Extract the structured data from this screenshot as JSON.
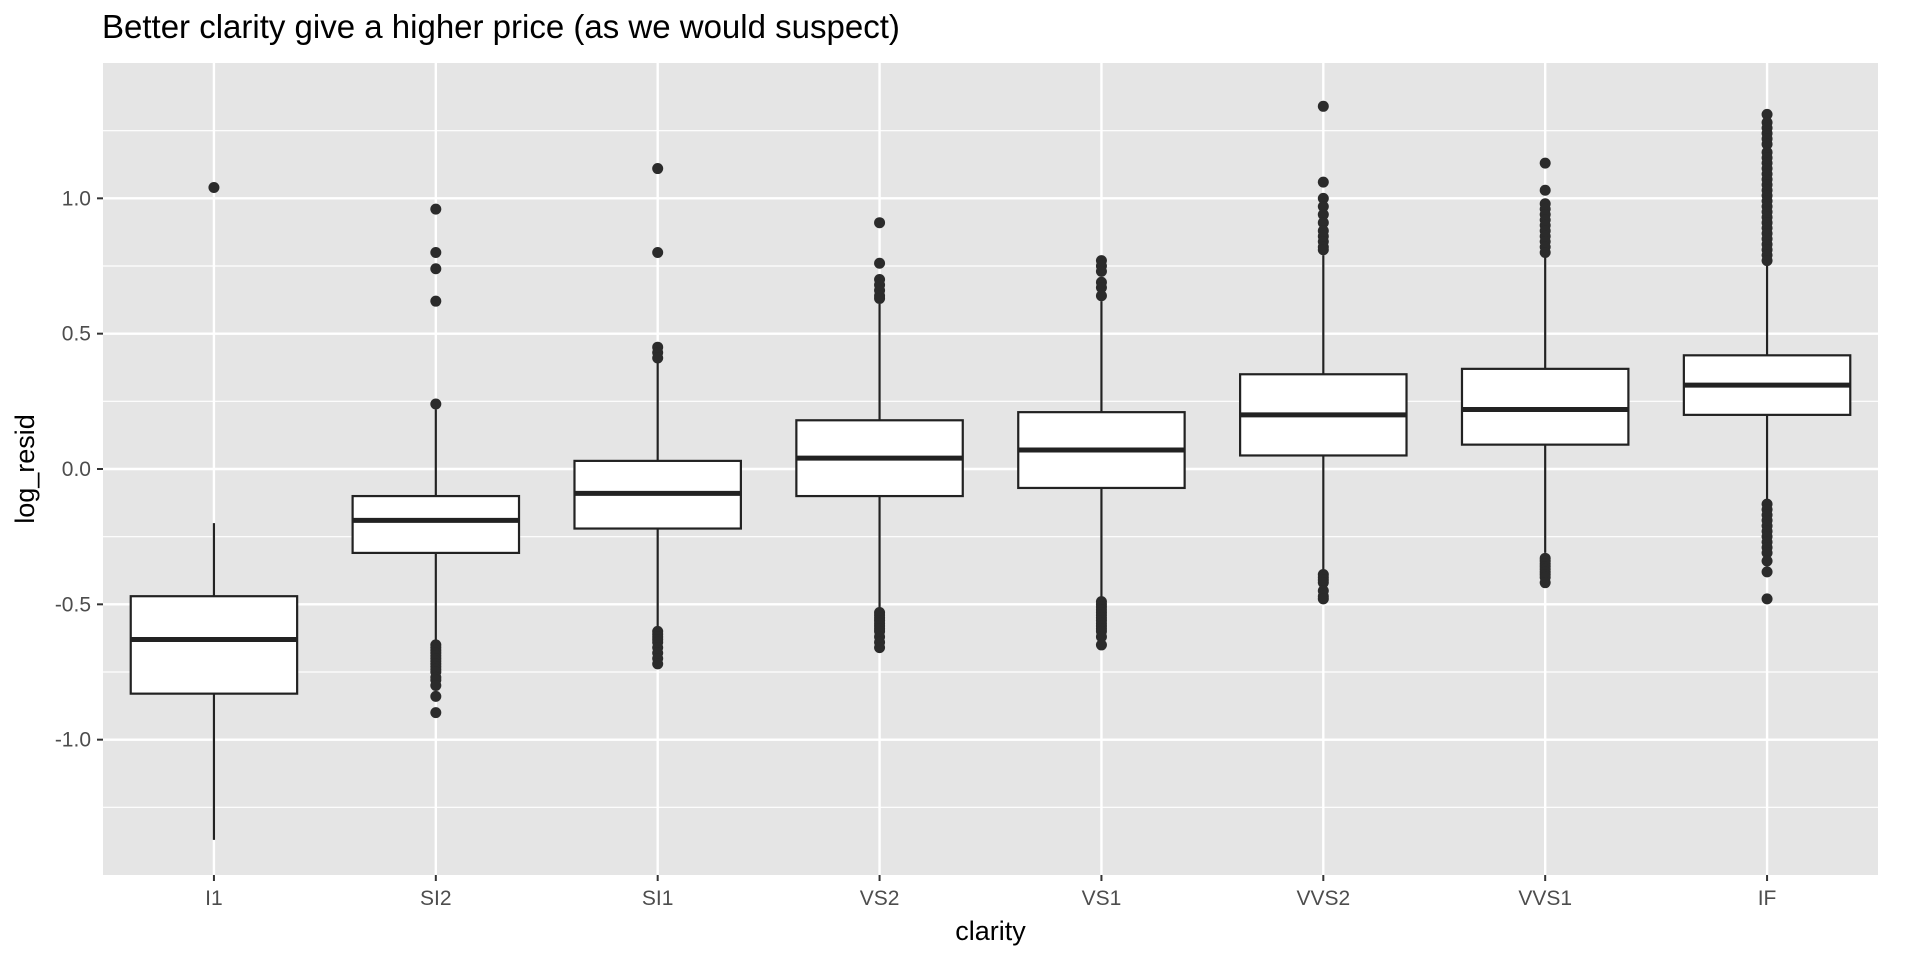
{
  "chart_data": {
    "type": "boxplot",
    "title": "Better clarity give a higher price (as we would suspect)",
    "xlabel": "clarity",
    "ylabel": "log_resid",
    "ylim": [
      -1.5,
      1.5
    ],
    "y_ticks": [
      -1.0,
      -0.5,
      0.0,
      0.5,
      1.0
    ],
    "y_tick_labels": [
      "-1.0",
      "-0.5",
      "0.0",
      "0.5",
      "1.0"
    ],
    "grid": true,
    "legend": "none",
    "colors": {
      "panel": "#e5e5e5",
      "grid": "#ffffff",
      "box_fill": "#ffffff",
      "line": "#222222",
      "outlier": "#2b2b2b",
      "tick_text": "#4d4d4d"
    },
    "categories": [
      "I1",
      "SI2",
      "SI1",
      "VS2",
      "VS1",
      "VVS2",
      "VVS1",
      "IF"
    ],
    "boxes": [
      {
        "category": "I1",
        "whisker_low": -1.37,
        "q1": -0.83,
        "median": -0.63,
        "q3": -0.47,
        "whisker_high": -0.2,
        "outliers": [
          1.04
        ]
      },
      {
        "category": "SI2",
        "whisker_low": -0.64,
        "q1": -0.31,
        "median": -0.19,
        "q3": -0.1,
        "whisker_high": 0.22,
        "outliers": [
          0.96,
          0.8,
          0.74,
          0.62,
          0.24,
          -0.65,
          -0.66,
          -0.67,
          -0.68,
          -0.69,
          -0.7,
          -0.71,
          -0.72,
          -0.73,
          -0.74,
          -0.75,
          -0.77,
          -0.78,
          -0.8,
          -0.84,
          -0.9
        ]
      },
      {
        "category": "SI1",
        "whisker_low": -0.59,
        "q1": -0.22,
        "median": -0.09,
        "q3": 0.03,
        "whisker_high": 0.4,
        "outliers": [
          1.11,
          0.8,
          0.45,
          0.43,
          0.41,
          -0.6,
          -0.61,
          -0.62,
          -0.63,
          -0.64,
          -0.66,
          -0.68,
          -0.7,
          -0.72
        ]
      },
      {
        "category": "VS2",
        "whisker_low": -0.52,
        "q1": -0.1,
        "median": 0.04,
        "q3": 0.18,
        "whisker_high": 0.61,
        "outliers": [
          0.91,
          0.76,
          0.7,
          0.68,
          0.66,
          0.64,
          0.63,
          -0.53,
          -0.54,
          -0.55,
          -0.56,
          -0.57,
          -0.58,
          -0.59,
          -0.6,
          -0.62,
          -0.64,
          -0.66
        ]
      },
      {
        "category": "VS1",
        "whisker_low": -0.48,
        "q1": -0.07,
        "median": 0.07,
        "q3": 0.21,
        "whisker_high": 0.62,
        "outliers": [
          0.77,
          0.75,
          0.73,
          0.69,
          0.67,
          0.64,
          -0.49,
          -0.5,
          -0.51,
          -0.52,
          -0.53,
          -0.54,
          -0.55,
          -0.56,
          -0.57,
          -0.58,
          -0.59,
          -0.6,
          -0.62,
          -0.65
        ]
      },
      {
        "category": "VVS2",
        "whisker_low": -0.38,
        "q1": 0.05,
        "median": 0.2,
        "q3": 0.35,
        "whisker_high": 0.79,
        "outliers": [
          1.34,
          1.06,
          1.0,
          0.97,
          0.94,
          0.91,
          0.88,
          0.86,
          0.84,
          0.82,
          0.81,
          -0.39,
          -0.4,
          -0.41,
          -0.42,
          -0.45,
          -0.47,
          -0.48
        ]
      },
      {
        "category": "VVS1",
        "whisker_low": -0.31,
        "q1": 0.09,
        "median": 0.22,
        "q3": 0.37,
        "whisker_high": 0.79,
        "outliers": [
          1.13,
          1.03,
          0.98,
          0.96,
          0.94,
          0.92,
          0.9,
          0.88,
          0.86,
          0.84,
          0.82,
          0.8,
          -0.33,
          -0.34,
          -0.35,
          -0.36,
          -0.37,
          -0.38,
          -0.39,
          -0.4,
          -0.42
        ]
      },
      {
        "category": "IF",
        "whisker_low": -0.12,
        "q1": 0.2,
        "median": 0.31,
        "q3": 0.42,
        "whisker_high": 0.75,
        "outliers": [
          1.31,
          1.28,
          1.26,
          1.24,
          1.22,
          1.2,
          1.17,
          1.15,
          1.13,
          1.11,
          1.09,
          1.07,
          1.05,
          1.03,
          1.01,
          0.99,
          0.97,
          0.95,
          0.93,
          0.91,
          0.89,
          0.87,
          0.85,
          0.83,
          0.81,
          0.79,
          0.77,
          -0.13,
          -0.15,
          -0.17,
          -0.19,
          -0.21,
          -0.23,
          -0.25,
          -0.27,
          -0.29,
          -0.31,
          -0.34,
          -0.38,
          -0.48
        ]
      }
    ]
  }
}
